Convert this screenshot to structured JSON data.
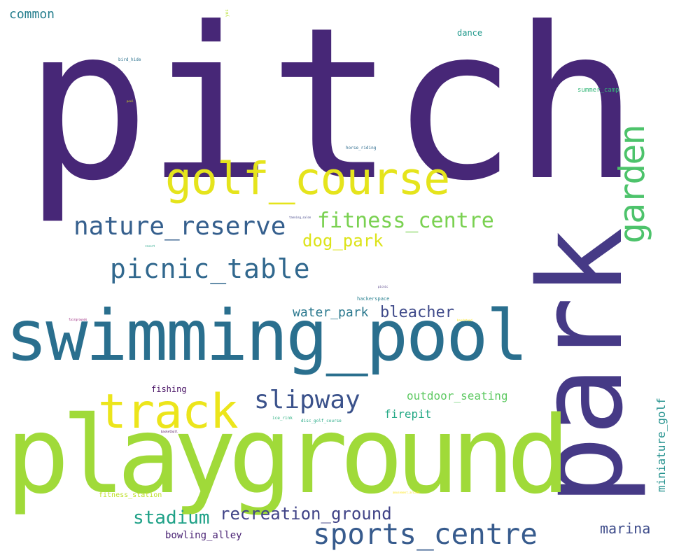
{
  "words": {
    "pitch": {
      "text": "pitch",
      "color": "#472777"
    },
    "park": {
      "text": "park",
      "color": "#463a86"
    },
    "playground": {
      "text": "playground",
      "color": "#a0da39"
    },
    "swimming_pool": {
      "text": "swimming_pool",
      "color": "#2a6f8e"
    },
    "golf_course": {
      "text": "golf_course",
      "color": "#e5e41c"
    },
    "track": {
      "text": "track",
      "color": "#ece51b"
    },
    "garden": {
      "text": "garden",
      "color": "#4dc36b"
    },
    "nature_reserve": {
      "text": "nature_reserve",
      "color": "#355f8d"
    },
    "picnic_table": {
      "text": "picnic_table",
      "color": "#31688e"
    },
    "fitness_centre": {
      "text": "fitness_centre",
      "color": "#7ad151"
    },
    "dog_park": {
      "text": "dog_park",
      "color": "#dce319"
    },
    "sports_centre": {
      "text": "sports_centre",
      "color": "#375b8d"
    },
    "slipway": {
      "text": "slipway",
      "color": "#3b528b"
    },
    "stadium": {
      "text": "stadium",
      "color": "#1fa187"
    },
    "recreation_ground": {
      "text": "recreation_ground",
      "color": "#404387"
    },
    "bleacher": {
      "text": "bleacher",
      "color": "#3f4a8a"
    },
    "water_park": {
      "text": "water_park",
      "color": "#2a788e"
    },
    "outdoor_seating": {
      "text": "outdoor_seating",
      "color": "#5ec962"
    },
    "firepit": {
      "text": "firepit",
      "color": "#22a884"
    },
    "miniature_golf": {
      "text": "miniature_golf",
      "color": "#21908c"
    },
    "marina": {
      "text": "marina",
      "color": "#3e4c8a"
    },
    "bowling_alley": {
      "text": "bowling_alley",
      "color": "#482173"
    },
    "common": {
      "text": "common",
      "color": "#277f8e"
    },
    "dance": {
      "text": "dance",
      "color": "#1f988b"
    },
    "fishing": {
      "text": "fishing",
      "color": "#471164"
    },
    "fitness_station": {
      "text": "fitness_station",
      "color": "#bddf26"
    },
    "summer_camp": {
      "text": "summer_camp",
      "color": "#35b779"
    },
    "hackerspace": {
      "text": "hackerspace",
      "color": "#277f8e"
    },
    "ice_rink": {
      "text": "ice_rink",
      "color": "#29af7f"
    },
    "disc_golf_course": {
      "text": "disc_golf_course",
      "color": "#22a884"
    },
    "horse_riding": {
      "text": "horse_riding",
      "color": "#2f6c8e"
    },
    "bird_hide": {
      "text": "bird_hide",
      "color": "#2c728e"
    },
    "yes": {
      "text": "yes",
      "color": "#b5de2b"
    },
    "fairgrounds": {
      "text": "fairgrounds",
      "color": "#8f0f6f"
    },
    "basketball": {
      "text": "basketball",
      "color": "#440154"
    },
    "amusement_arcade": {
      "text": "amusement_arcade",
      "color": "#fde725"
    },
    "tanning_salon": {
      "text": "tanning_salon",
      "color": "#414487"
    },
    "picnic": {
      "text": "picnic",
      "color": "#46327e"
    },
    "resort": {
      "text": "resort",
      "color": "#20a386"
    },
    "pool": {
      "text": "pool",
      "color": "#d8e219"
    },
    "bandstand": {
      "text": "bandstand",
      "color": "#fde725"
    }
  }
}
